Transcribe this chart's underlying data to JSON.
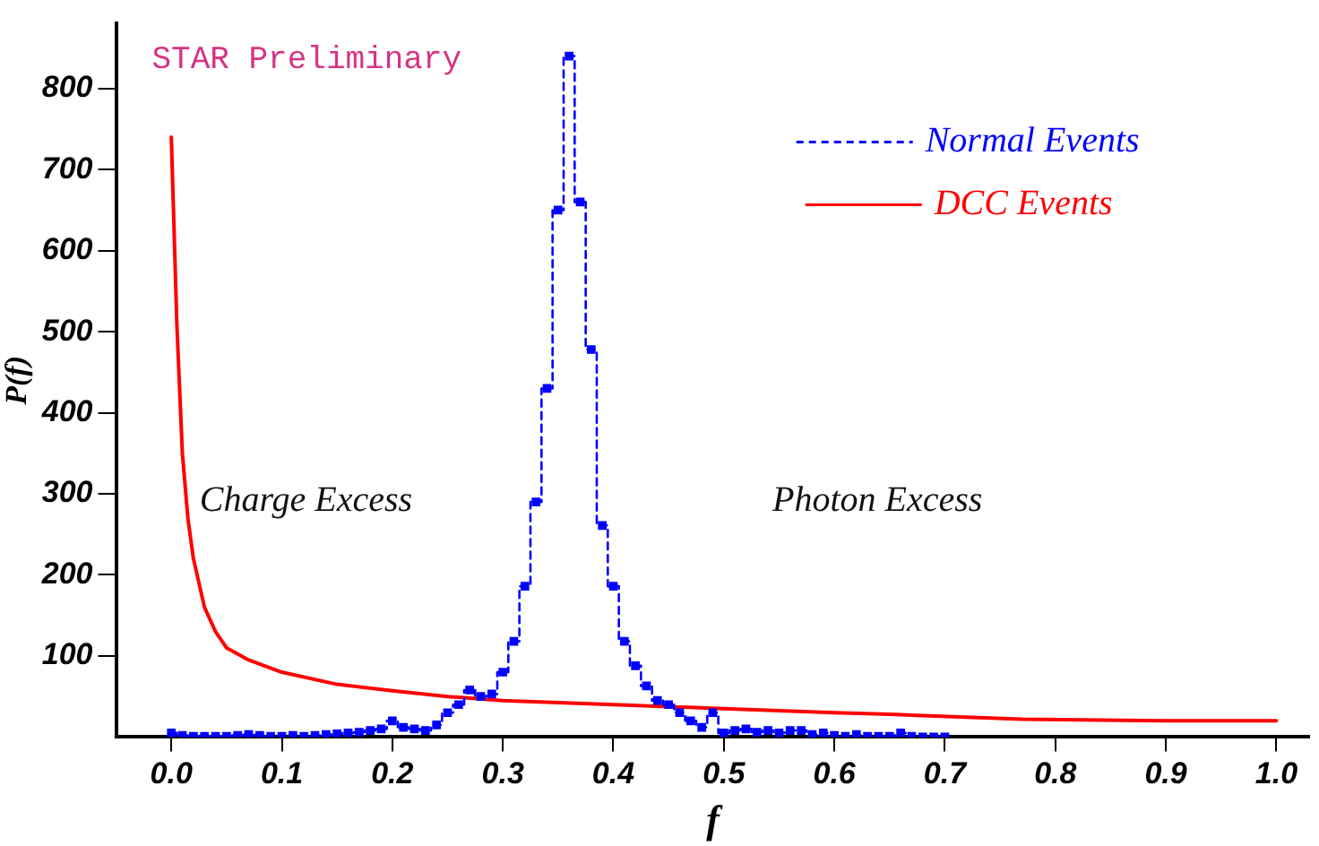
{
  "chart_data": {
    "type": "line",
    "xlabel": "f",
    "ylabel": "P(f)",
    "annotations": [
      "STAR Preliminary",
      "Charge Excess",
      "Photon Excess"
    ],
    "xlim": [
      -0.05,
      1.03
    ],
    "ylim": [
      0,
      880
    ],
    "xticks": [
      {
        "value": 0,
        "label": "0.0"
      },
      {
        "value": 0.1,
        "label": "0.1"
      },
      {
        "value": 0.2,
        "label": "0.2"
      },
      {
        "value": 0.3,
        "label": "0.3"
      },
      {
        "value": 0.4,
        "label": "0.4"
      },
      {
        "value": 0.5,
        "label": "0.5"
      },
      {
        "value": 0.6,
        "label": "0.6"
      },
      {
        "value": 0.7,
        "label": "0.7"
      },
      {
        "value": 0.8,
        "label": "0.8"
      },
      {
        "value": 0.9,
        "label": "0.9"
      },
      {
        "value": 1,
        "label": "1.0"
      }
    ],
    "yticks": [
      100,
      200,
      300,
      400,
      500,
      600,
      700,
      800
    ],
    "grid": false,
    "legend": "top right",
    "series": [
      {
        "name": "Normal Events",
        "type": "step",
        "color": "#0000ff",
        "line_style": "dashed",
        "marker": "square",
        "x": [
          0,
          0.01,
          0.02,
          0.03,
          0.04,
          0.05,
          0.06,
          0.07,
          0.08,
          0.09,
          0.1,
          0.11,
          0.12,
          0.13,
          0.14,
          0.15,
          0.16,
          0.17,
          0.18,
          0.19,
          0.2,
          0.21,
          0.22,
          0.23,
          0.24,
          0.25,
          0.26,
          0.27,
          0.28,
          0.29,
          0.3,
          0.31,
          0.32,
          0.33,
          0.34,
          0.35,
          0.36,
          0.37,
          0.38,
          0.39,
          0.4,
          0.41,
          0.42,
          0.43,
          0.44,
          0.45,
          0.46,
          0.47,
          0.48,
          0.49,
          0.5,
          0.51,
          0.52,
          0.53,
          0.54,
          0.55,
          0.56,
          0.57,
          0.58,
          0.59,
          0.6,
          0.61,
          0.62,
          0.63,
          0.64,
          0.65,
          0.66,
          0.67,
          0.68,
          0.69,
          0.7
        ],
        "values": [
          5,
          2,
          1,
          1,
          1,
          1,
          2,
          3,
          2,
          1,
          1,
          2,
          1,
          2,
          3,
          4,
          5,
          6,
          8,
          10,
          20,
          12,
          10,
          8,
          15,
          30,
          40,
          58,
          50,
          53,
          80,
          118,
          186,
          290,
          430,
          650,
          840,
          660,
          478,
          261,
          186,
          118,
          88,
          63,
          45,
          40,
          30,
          20,
          12,
          30,
          5,
          8,
          10,
          6,
          8,
          5,
          8,
          8,
          3,
          5,
          2,
          1,
          3,
          1,
          1,
          1,
          5,
          1,
          0,
          0,
          0
        ]
      },
      {
        "name": "DCC Events",
        "type": "line",
        "color": "#ff0000",
        "line_style": "solid",
        "marker": "none",
        "x": [
          0,
          0.005,
          0.01,
          0.015,
          0.02,
          0.03,
          0.04,
          0.05,
          0.07,
          0.1,
          0.15,
          0.2,
          0.25,
          0.3,
          0.4,
          0.5,
          0.6,
          0.65,
          0.77,
          0.9,
          1.0
        ],
        "values": [
          740,
          510,
          350,
          270,
          220,
          160,
          130,
          110,
          95,
          80,
          65,
          57,
          50,
          45,
          40,
          35,
          30,
          28,
          22,
          20,
          20
        ]
      }
    ]
  }
}
